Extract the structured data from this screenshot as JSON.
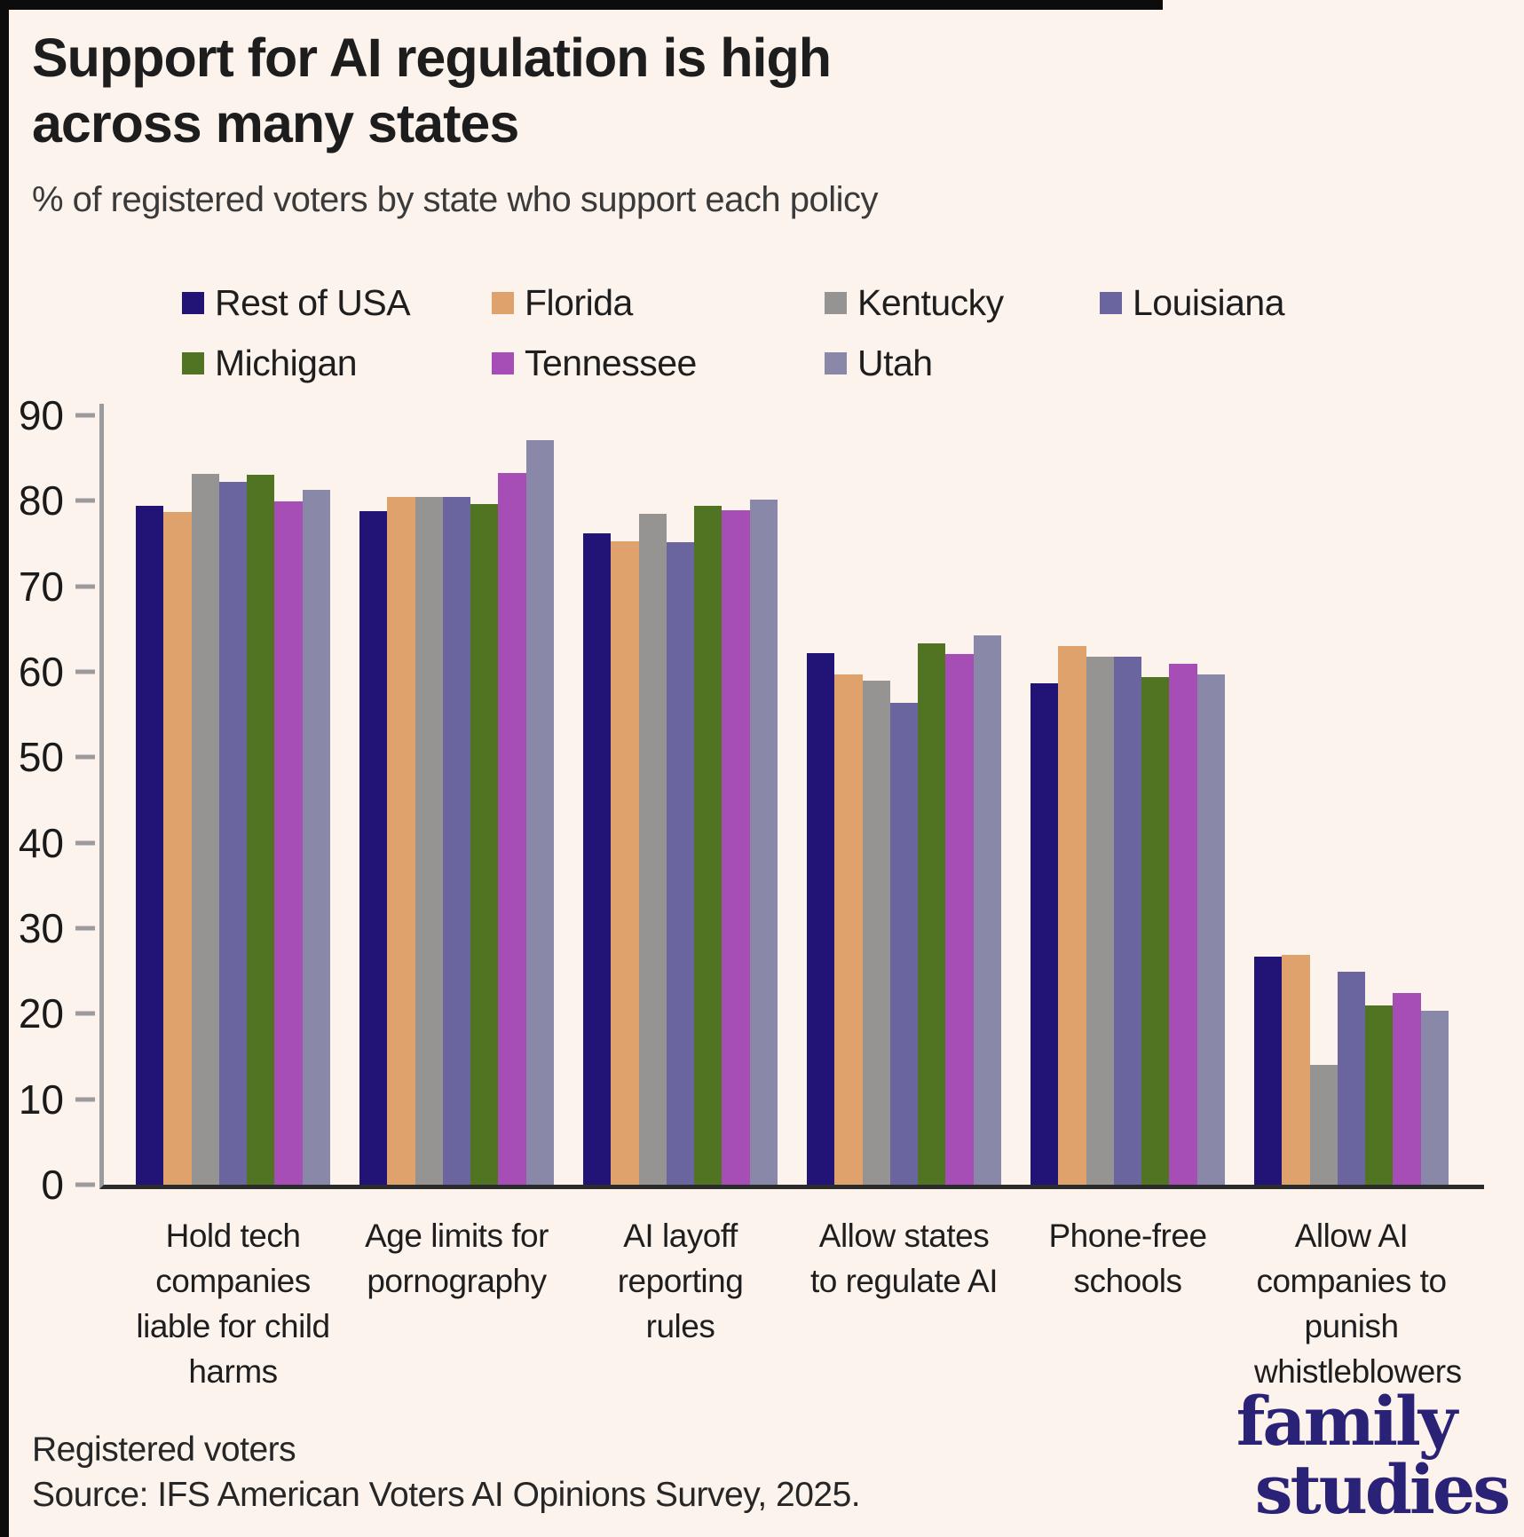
{
  "header": {
    "title_line1": "Support for AI regulation is high",
    "title_line2": "across many states",
    "subtitle": "% of registered voters by state who support each policy"
  },
  "footer": {
    "note": "Registered voters",
    "source": "Source: IFS American Voters AI Opinions Survey, 2025."
  },
  "logo": {
    "line1": "family",
    "line2": "studies"
  },
  "colors": {
    "background": "#fdf3ed",
    "axis_line": "#9b9b9b",
    "baseline": "#2b2b2b",
    "title_text": "#1d1d1d",
    "logo_navy": "#2a2277"
  },
  "chart_data": {
    "type": "bar",
    "title": "Support for AI regulation is high across many states",
    "subtitle": "% of registered voters by state who support each policy",
    "xlabel": "",
    "ylabel": "",
    "ylim": [
      0,
      90
    ],
    "yticks": [
      0,
      10,
      20,
      30,
      40,
      50,
      60,
      70,
      80,
      90
    ],
    "grid": false,
    "legend_position": "top",
    "categories": [
      "Hold tech companies liable for child harms",
      "Age limits for pornography",
      "AI layoff reporting rules",
      "Allow states to regulate AI",
      "Phone-free schools",
      "Allow AI companies to punish whistleblowers"
    ],
    "series": [
      {
        "name": "Rest of USA",
        "color": "#211476",
        "values": [
          79.4,
          78.8,
          76.2,
          62.2,
          58.7,
          26.7
        ]
      },
      {
        "name": "Florida",
        "color": "#e0a26d",
        "values": [
          78.7,
          80.4,
          75.3,
          59.7,
          63.0,
          26.9
        ]
      },
      {
        "name": "Kentucky",
        "color": "#969492",
        "values": [
          83.1,
          80.5,
          78.5,
          59.0,
          61.8,
          14.0
        ]
      },
      {
        "name": "Louisiana",
        "color": "#6a659e",
        "values": [
          82.2,
          80.5,
          75.2,
          56.4,
          61.8,
          24.9
        ]
      },
      {
        "name": "Michigan",
        "color": "#507421",
        "values": [
          83.0,
          79.6,
          79.4,
          63.3,
          59.4,
          21.0
        ]
      },
      {
        "name": "Tennessee",
        "color": "#a64db6",
        "values": [
          79.9,
          83.3,
          78.9,
          62.1,
          60.9,
          22.4
        ]
      },
      {
        "name": "Utah",
        "color": "#8a88a9",
        "values": [
          81.3,
          87.1,
          80.1,
          64.3,
          59.7,
          20.3
        ]
      }
    ]
  }
}
